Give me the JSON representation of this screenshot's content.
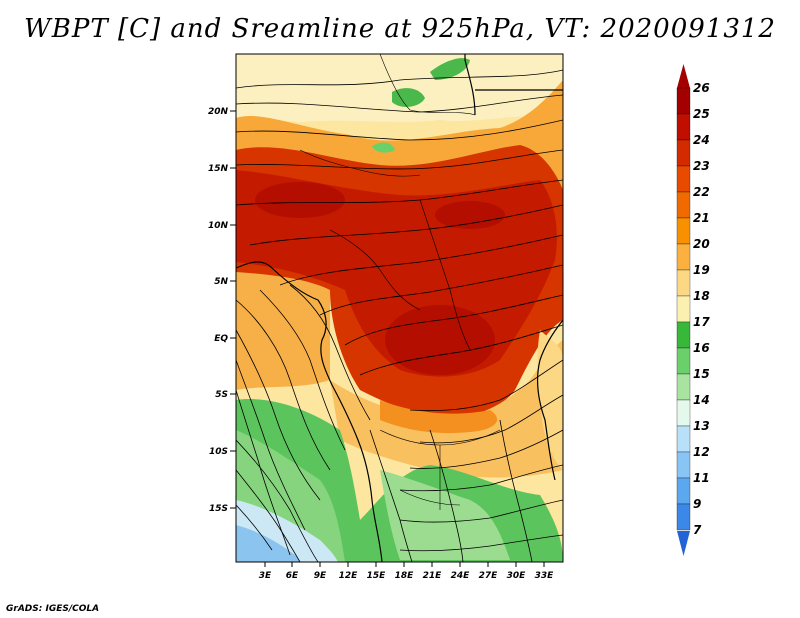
{
  "title": "WBPT [C] and Sreamline at 925hPa, VT: 2020091312",
  "credit": "GrADS: IGES/COLA",
  "map": {
    "lat_labels": [
      "20N",
      "15N",
      "10N",
      "5N",
      "EQ",
      "5S",
      "10S",
      "15S"
    ],
    "lon_labels": [
      "3E",
      "6E",
      "9E",
      "12E",
      "15E",
      "18E",
      "21E",
      "24E",
      "27E",
      "30E",
      "33E"
    ]
  },
  "colorbar": {
    "labels": [
      "26",
      "25",
      "24",
      "23",
      "22",
      "21",
      "20",
      "19",
      "18",
      "17",
      "16",
      "15",
      "14",
      "13",
      "12",
      "11",
      "9",
      "7"
    ],
    "colors": [
      "#a50000",
      "#c00f00",
      "#d42a00",
      "#e84a00",
      "#f06a00",
      "#f89000",
      "#fcb040",
      "#fcd884",
      "#fcf0b0",
      "#38b838",
      "#6ad06a",
      "#a8e4a0",
      "#e4f8ec",
      "#b8e0f8",
      "#88c4f4",
      "#5ca8ee",
      "#3c88e8",
      "#2264d8"
    ]
  }
}
